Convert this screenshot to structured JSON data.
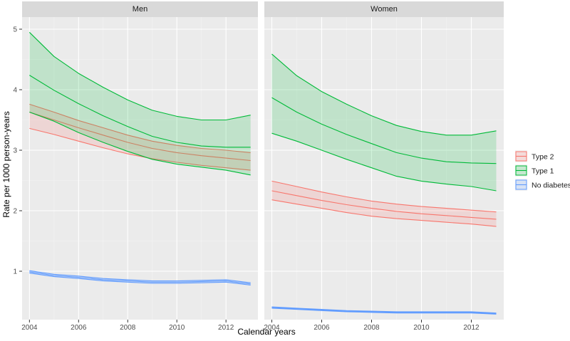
{
  "chart_data": {
    "type": "line",
    "facets": [
      "Men",
      "Women"
    ],
    "xlabel": "Calendar years",
    "ylabel": "Rate per 1000 person-years",
    "x": [
      2004,
      2005,
      2006,
      2007,
      2008,
      2009,
      2010,
      2011,
      2012,
      2013
    ],
    "xticks": [
      2004,
      2006,
      2008,
      2010,
      2012
    ],
    "yticks": [
      1,
      2,
      3,
      4,
      5
    ],
    "xlim": [
      2003.7,
      2013.3
    ],
    "ylim": [
      0.2,
      5.2
    ],
    "grid": true,
    "legend_position": "right",
    "series": [
      {
        "name": "Type 2",
        "color": "#F8766D",
        "panels": {
          "Men": {
            "estimate": [
              3.63,
              3.5,
              3.37,
              3.25,
              3.13,
              3.03,
              2.96,
              2.91,
              2.87,
              2.83
            ],
            "lower": [
              3.36,
              3.26,
              3.15,
              3.04,
              2.94,
              2.86,
              2.8,
              2.75,
              2.71,
              2.67
            ],
            "upper": [
              3.76,
              3.63,
              3.49,
              3.37,
              3.25,
              3.15,
              3.08,
              3.03,
              3.0,
              2.96
            ]
          },
          "Women": {
            "estimate": [
              2.33,
              2.25,
              2.17,
              2.1,
              2.04,
              1.99,
              1.95,
              1.92,
              1.89,
              1.86
            ],
            "lower": [
              2.18,
              2.11,
              2.04,
              1.97,
              1.91,
              1.87,
              1.84,
              1.81,
              1.78,
              1.74
            ],
            "upper": [
              2.49,
              2.4,
              2.31,
              2.23,
              2.16,
              2.11,
              2.07,
              2.04,
              2.01,
              1.98
            ]
          }
        }
      },
      {
        "name": "Type 1",
        "color": "#00BA38",
        "panels": {
          "Men": {
            "estimate": [
              4.24,
              3.99,
              3.77,
              3.57,
              3.39,
              3.23,
              3.13,
              3.07,
              3.05,
              3.05
            ],
            "lower": [
              3.63,
              3.48,
              3.29,
              3.13,
              2.98,
              2.85,
              2.77,
              2.72,
              2.67,
              2.59
            ],
            "upper": [
              4.95,
              4.55,
              4.27,
              4.04,
              3.83,
              3.66,
              3.56,
              3.5,
              3.5,
              3.58
            ]
          },
          "Women": {
            "estimate": [
              3.87,
              3.63,
              3.43,
              3.26,
              3.11,
              2.96,
              2.87,
              2.81,
              2.79,
              2.78
            ],
            "lower": [
              3.28,
              3.15,
              3.0,
              2.85,
              2.71,
              2.57,
              2.49,
              2.44,
              2.4,
              2.33
            ],
            "upper": [
              4.59,
              4.23,
              3.97,
              3.76,
              3.57,
              3.41,
              3.31,
              3.25,
              3.25,
              3.32
            ]
          }
        }
      },
      {
        "name": "No diabetes",
        "color": "#619CFF",
        "panels": {
          "Men": {
            "estimate": [
              0.99,
              0.93,
              0.9,
              0.86,
              0.84,
              0.82,
              0.82,
              0.83,
              0.84,
              0.79
            ],
            "lower": [
              0.97,
              0.91,
              0.88,
              0.84,
              0.82,
              0.8,
              0.8,
              0.81,
              0.82,
              0.77
            ],
            "upper": [
              1.01,
              0.95,
              0.92,
              0.88,
              0.86,
              0.84,
              0.84,
              0.85,
              0.86,
              0.81
            ]
          },
          "Women": {
            "estimate": [
              0.4,
              0.38,
              0.36,
              0.34,
              0.33,
              0.32,
              0.32,
              0.32,
              0.32,
              0.3
            ],
            "lower": [
              0.39,
              0.37,
              0.35,
              0.33,
              0.32,
              0.31,
              0.31,
              0.31,
              0.31,
              0.29
            ],
            "upper": [
              0.41,
              0.39,
              0.37,
              0.35,
              0.34,
              0.33,
              0.33,
              0.33,
              0.33,
              0.31
            ]
          }
        }
      }
    ],
    "legend_order": [
      "Type 2",
      "Type 1",
      "No diabetes"
    ]
  }
}
